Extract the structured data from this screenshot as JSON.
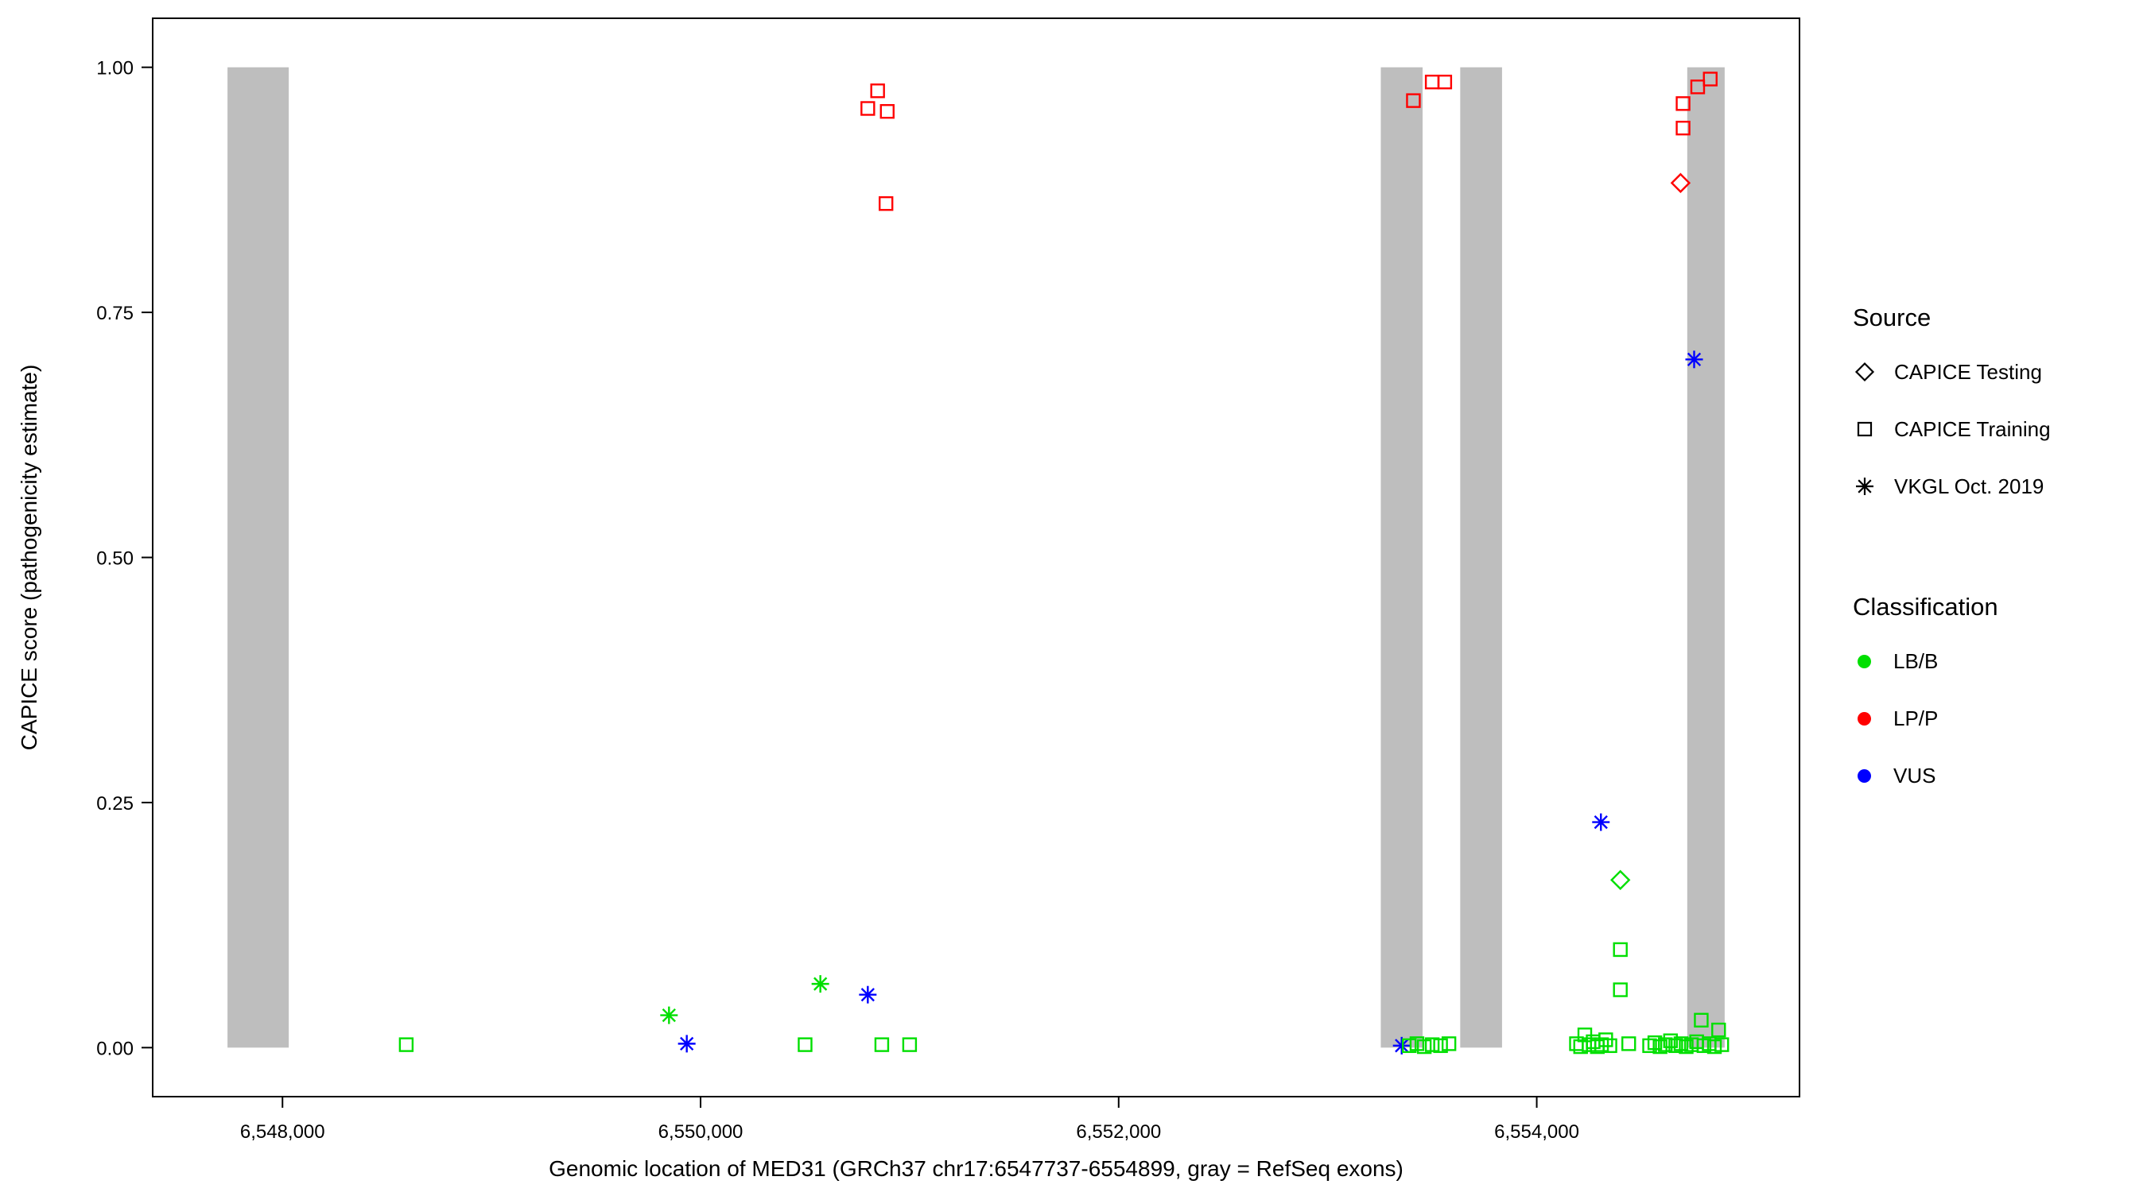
{
  "colors": {
    "lbb": "#00DF00",
    "lpp": "#FF0000",
    "vus": "#0000FF",
    "exon": "#BEBEBE",
    "text": "#000000"
  },
  "chart_data": {
    "type": "scatter",
    "title": "",
    "xlabel": "Genomic location of MED31 (GRCh37 chr17:6547737-6554899, gray = RefSeq exons)",
    "ylabel": "CAPICE score (pathogenicity estimate)",
    "xlim": [
      6547379,
      6555257
    ],
    "ylim": [
      -0.05,
      1.05
    ],
    "grid": "off",
    "legend_position": "right",
    "x_ticks": [
      {
        "value": 6548000,
        "label": "6,548,000"
      },
      {
        "value": 6550000,
        "label": "6,550,000"
      },
      {
        "value": 6552000,
        "label": "6,552,000"
      },
      {
        "value": 6554000,
        "label": "6,554,000"
      }
    ],
    "y_ticks": [
      {
        "value": 0.0,
        "label": "0.00"
      },
      {
        "value": 0.25,
        "label": "0.25"
      },
      {
        "value": 0.5,
        "label": "0.50"
      },
      {
        "value": 0.75,
        "label": "0.75"
      },
      {
        "value": 1.0,
        "label": "1.00"
      }
    ],
    "exons": [
      {
        "start": 6547737,
        "end": 6548030
      },
      {
        "start": 6553254,
        "end": 6553454
      },
      {
        "start": 6553634,
        "end": 6553834
      },
      {
        "start": 6554720,
        "end": 6554899
      }
    ],
    "series": [
      {
        "name": "CAPICE Training / LP/P",
        "source": "CAPICE Training",
        "classification": "LP/P",
        "shape": "square-open",
        "color_key": "lpp",
        "points": [
          [
            6550800,
            0.958
          ],
          [
            6550847,
            0.976
          ],
          [
            6550893,
            0.955
          ],
          [
            6550887,
            0.861
          ],
          [
            6553410,
            0.966
          ],
          [
            6553500,
            0.985
          ],
          [
            6553560,
            0.985
          ],
          [
            6554700,
            0.963
          ],
          [
            6554700,
            0.938
          ],
          [
            6554770,
            0.98
          ],
          [
            6554830,
            0.988
          ]
        ]
      },
      {
        "name": "CAPICE Testing / LP/P",
        "source": "CAPICE Testing",
        "classification": "LP/P",
        "shape": "diamond-open",
        "color_key": "lpp",
        "points": [
          [
            6554688,
            0.882
          ]
        ]
      },
      {
        "name": "VKGL Oct. 2019 / VUS",
        "source": "VKGL Oct. 2019",
        "classification": "VUS",
        "shape": "asterisk",
        "color_key": "vus",
        "points": [
          [
            6554753,
            0.702
          ],
          [
            6554307,
            0.23
          ],
          [
            6550800,
            0.054
          ],
          [
            6549934,
            0.004
          ],
          [
            6553354,
            0.002
          ]
        ]
      },
      {
        "name": "VKGL Oct. 2019 / LB/B",
        "source": "VKGL Oct. 2019",
        "classification": "LB/B",
        "shape": "asterisk",
        "color_key": "lbb",
        "points": [
          [
            6549849,
            0.033
          ],
          [
            6550573,
            0.065
          ]
        ]
      },
      {
        "name": "CAPICE Testing / LB/B",
        "source": "CAPICE Testing",
        "classification": "LB/B",
        "shape": "diamond-open",
        "color_key": "lbb",
        "points": [
          [
            6554400,
            0.171
          ]
        ]
      },
      {
        "name": "CAPICE Training / LB/B",
        "source": "CAPICE Training",
        "classification": "LB/B",
        "shape": "square-open",
        "color_key": "lbb",
        "points": [
          [
            6548592,
            0.003
          ],
          [
            6550500,
            0.003
          ],
          [
            6550867,
            0.003
          ],
          [
            6551000,
            0.003
          ],
          [
            6553390,
            0.002
          ],
          [
            6553427,
            0.004
          ],
          [
            6553462,
            0.001
          ],
          [
            6553500,
            0.003
          ],
          [
            6553540,
            0.002
          ],
          [
            6553580,
            0.004
          ],
          [
            6554400,
            0.1
          ],
          [
            6554400,
            0.059
          ],
          [
            6554190,
            0.004
          ],
          [
            6554210,
            0.001
          ],
          [
            6554230,
            0.013
          ],
          [
            6554250,
            0.003
          ],
          [
            6554270,
            0.006
          ],
          [
            6554290,
            0.001
          ],
          [
            6554310,
            0.003
          ],
          [
            6554330,
            0.008
          ],
          [
            6554350,
            0.002
          ],
          [
            6554440,
            0.004
          ],
          [
            6554540,
            0.002
          ],
          [
            6554565,
            0.005
          ],
          [
            6554590,
            0.001
          ],
          [
            6554615,
            0.003
          ],
          [
            6554640,
            0.007
          ],
          [
            6554665,
            0.002
          ],
          [
            6554690,
            0.004
          ],
          [
            6554715,
            0.001
          ],
          [
            6554740,
            0.003
          ],
          [
            6554765,
            0.006
          ],
          [
            6554787,
            0.028
          ],
          [
            6554800,
            0.002
          ],
          [
            6554825,
            0.004
          ],
          [
            6554850,
            0.001
          ],
          [
            6554870,
            0.018
          ],
          [
            6554885,
            0.003
          ]
        ]
      }
    ]
  },
  "legend": {
    "source": {
      "title": "Source",
      "items": [
        {
          "label": "CAPICE Testing",
          "shape": "diamond-open"
        },
        {
          "label": "CAPICE Training",
          "shape": "square-open"
        },
        {
          "label": "VKGL Oct. 2019",
          "shape": "asterisk"
        }
      ]
    },
    "classification": {
      "title": "Classification",
      "items": [
        {
          "label": "LB/B",
          "color": "#00DF00"
        },
        {
          "label": "LP/P",
          "color": "#FF0000"
        },
        {
          "label": "VUS",
          "color": "#0000FF"
        }
      ]
    }
  }
}
